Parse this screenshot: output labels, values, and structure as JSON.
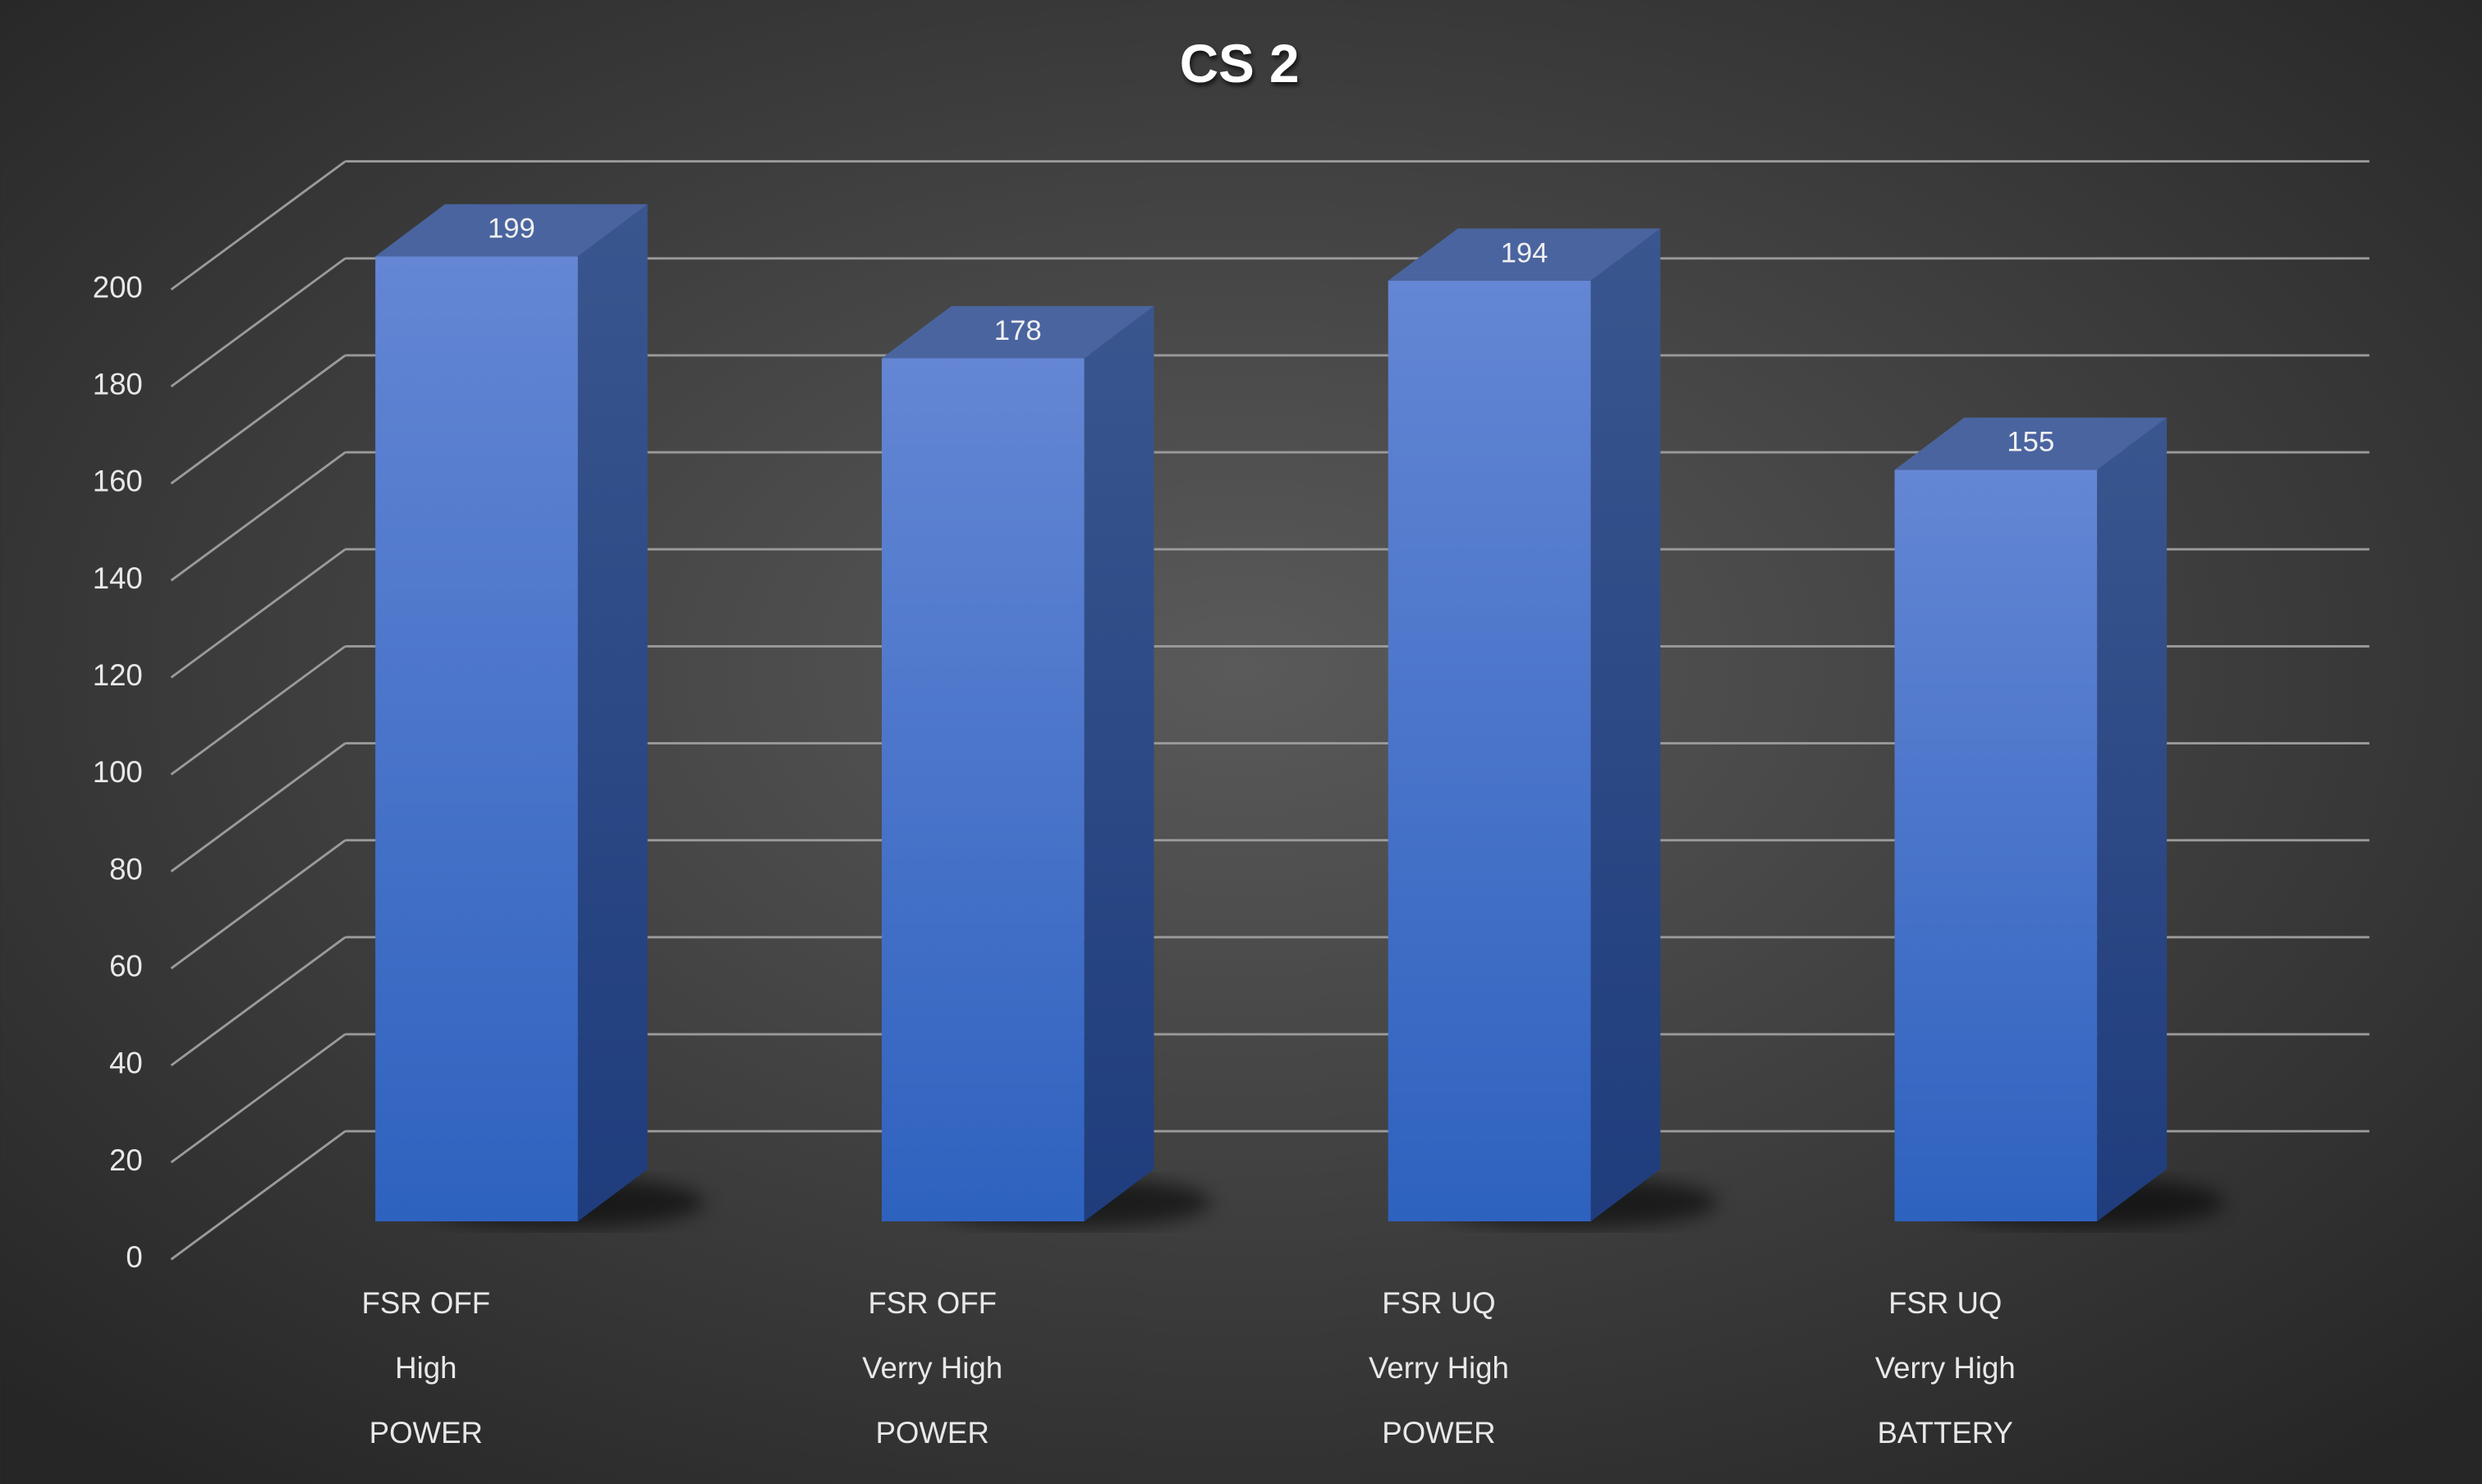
{
  "chart_data": {
    "type": "bar3d",
    "title": "CS 2",
    "categories": [
      [
        "FSR OFF",
        "High",
        "POWER"
      ],
      [
        "FSR OFF",
        "Verry High",
        "POWER"
      ],
      [
        "FSR UQ",
        "Verry High",
        "POWER"
      ],
      [
        "FSR UQ",
        "Verry High",
        "BATTERY"
      ]
    ],
    "values": [
      199,
      178,
      194,
      155
    ],
    "color": "#3f6fd0",
    "ylim": [
      0,
      200
    ],
    "yticks": [
      0,
      20,
      40,
      60,
      80,
      100,
      120,
      140,
      160,
      180,
      200
    ],
    "grid": true
  }
}
